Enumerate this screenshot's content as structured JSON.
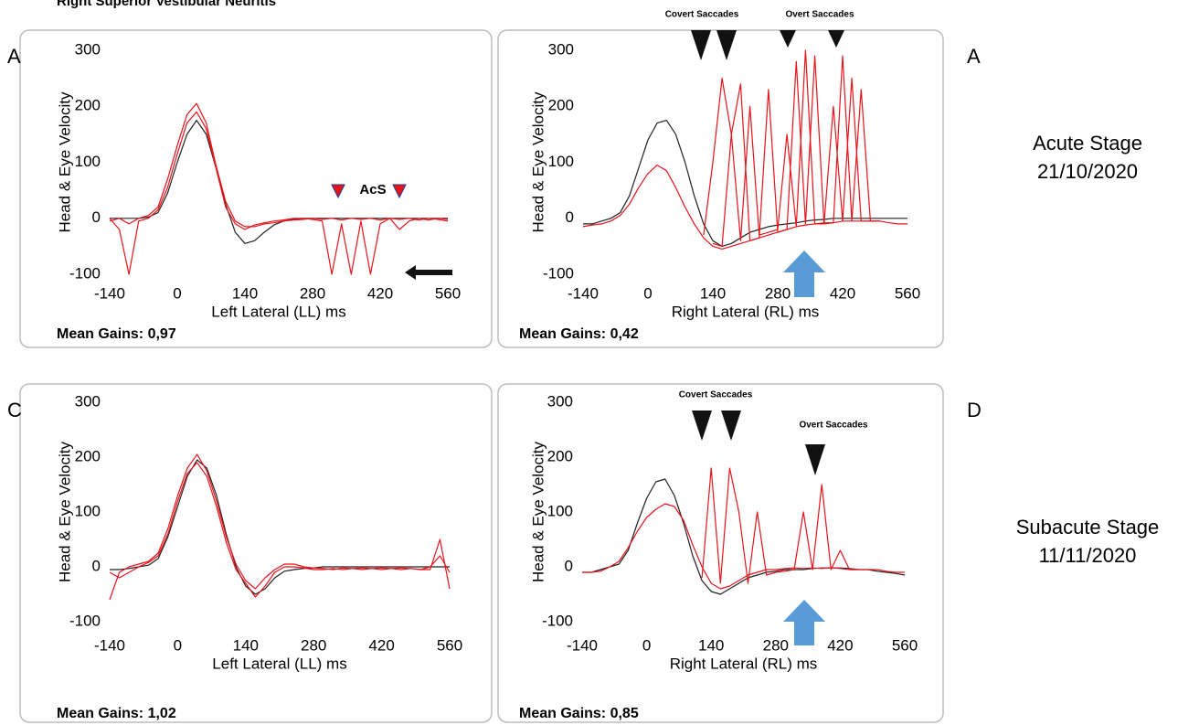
{
  "title": "Right Superior Vestibular Neuritis",
  "panel_labels": [
    "A",
    "A",
    "C",
    "D"
  ],
  "stages": [
    {
      "name": "Acute Stage",
      "date": "21/10/2020"
    },
    {
      "name": "Subacute Stage",
      "date": "11/11/2020"
    }
  ],
  "chart_data": [
    {
      "type": "line",
      "xlabel": "Left Lateral (LL) ms",
      "ylabel": "Head & Eye Velocity",
      "note": "Mean Gains: 0,97",
      "annotations": [
        "AcS"
      ],
      "xlim": [
        -140,
        560
      ],
      "ylim": [
        -100,
        300
      ],
      "xticks": [
        -140,
        0,
        140,
        280,
        420,
        560
      ],
      "yticks": [
        -100,
        0,
        100,
        200,
        300
      ],
      "x": [
        -140,
        -120,
        -100,
        -80,
        -60,
        -40,
        -20,
        0,
        20,
        40,
        60,
        80,
        100,
        120,
        140,
        160,
        180,
        200,
        220,
        240,
        260,
        280,
        300,
        320,
        340,
        360,
        380,
        400,
        420,
        440,
        460,
        480,
        500,
        520,
        540,
        560
      ],
      "series": [
        {
          "color": "#222222",
          "values": [
            0,
            0,
            0,
            0,
            2,
            10,
            45,
            100,
            150,
            175,
            150,
            90,
            25,
            -25,
            -45,
            -40,
            -25,
            -12,
            -5,
            -2,
            0,
            0,
            0,
            0,
            0,
            0,
            0,
            0,
            0,
            0,
            0,
            0,
            0,
            0,
            0,
            0
          ]
        },
        {
          "color": "#e8141c",
          "values": [
            -5,
            0,
            -10,
            0,
            5,
            20,
            70,
            130,
            185,
            205,
            170,
            95,
            30,
            -5,
            -15,
            -15,
            -10,
            -8,
            -5,
            -3,
            -2,
            0,
            -2,
            0,
            -3,
            0,
            -2,
            0,
            -3,
            0,
            -2,
            0,
            -3,
            0,
            -2,
            -5
          ]
        },
        {
          "color": "#e8141c",
          "values": [
            0,
            -20,
            -100,
            -5,
            0,
            15,
            55,
            115,
            170,
            190,
            160,
            90,
            20,
            -10,
            -20,
            -12,
            -8,
            -5,
            -3,
            0,
            0,
            -2,
            -5,
            -100,
            -10,
            -100,
            -5,
            -100,
            -10,
            0,
            -20,
            -5,
            0,
            -3,
            0,
            -2
          ]
        }
      ]
    },
    {
      "type": "line",
      "xlabel": "Right Lateral (RL) ms",
      "ylabel": "Head & Eye Velocity",
      "note": "Mean Gains: 0,42",
      "annotations": [
        "Covert Saccades",
        "Overt Saccades"
      ],
      "xlim": [
        -140,
        560
      ],
      "ylim": [
        -100,
        300
      ],
      "xticks": [
        -140,
        0,
        140,
        280,
        420,
        560
      ],
      "yticks": [
        -100,
        0,
        100,
        200,
        300
      ],
      "x": [
        -140,
        -120,
        -100,
        -80,
        -60,
        -40,
        -20,
        0,
        20,
        40,
        60,
        80,
        100,
        120,
        140,
        160,
        180,
        200,
        220,
        240,
        260,
        280,
        300,
        320,
        340,
        360,
        380,
        400,
        420,
        440,
        460,
        480,
        500,
        520,
        540,
        560
      ],
      "series": [
        {
          "color": "#222222",
          "values": [
            -10,
            -10,
            -5,
            0,
            10,
            40,
            90,
            140,
            170,
            175,
            150,
            100,
            40,
            -10,
            -40,
            -50,
            -45,
            -35,
            -25,
            -20,
            -15,
            -12,
            -10,
            -8,
            -5,
            -3,
            -2,
            0,
            0,
            0,
            0,
            0,
            0,
            0,
            0,
            0
          ]
        },
        {
          "color": "#e8141c",
          "values": [
            -15,
            -12,
            -10,
            -5,
            5,
            25,
            55,
            80,
            95,
            85,
            55,
            20,
            -10,
            -35,
            -50,
            -55,
            -50,
            -45,
            -40,
            -35,
            -30,
            -25,
            -20,
            -15,
            -12,
            -10,
            -8,
            -8,
            -5,
            -5,
            -5,
            -5,
            -5,
            -8,
            -10,
            -10
          ]
        },
        {
          "color": "#e8141c",
          "values": [
            null,
            null,
            null,
            null,
            null,
            null,
            null,
            null,
            null,
            null,
            null,
            null,
            null,
            -30,
            100,
            250,
            150,
            -40,
            200,
            -30,
            -25,
            -20,
            150,
            -15,
            300,
            -10,
            -10,
            200,
            -5,
            250,
            -5,
            -5,
            -5,
            null,
            null,
            null
          ]
        },
        {
          "color": "#e8141c",
          "values": [
            null,
            null,
            null,
            null,
            null,
            null,
            null,
            null,
            null,
            null,
            null,
            null,
            null,
            null,
            -45,
            -50,
            150,
            240,
            -40,
            -35,
            230,
            -25,
            -20,
            280,
            -10,
            290,
            -10,
            -8,
            290,
            -5,
            230,
            -5,
            -5,
            null,
            null,
            null
          ]
        }
      ]
    },
    {
      "type": "line",
      "xlabel": "Left Lateral (LL) ms",
      "ylabel": "Head & Eye Velocity",
      "note": "Mean Gains: 1,02",
      "annotations": [],
      "xlim": [
        -140,
        560
      ],
      "ylim": [
        -100,
        300
      ],
      "xticks": [
        -140,
        0,
        140,
        280,
        420,
        560
      ],
      "yticks": [
        -100,
        0,
        100,
        200,
        300
      ],
      "x": [
        -140,
        -120,
        -100,
        -80,
        -60,
        -40,
        -20,
        0,
        20,
        40,
        60,
        80,
        100,
        120,
        140,
        160,
        180,
        200,
        220,
        240,
        260,
        280,
        300,
        320,
        340,
        360,
        380,
        400,
        420,
        440,
        460,
        480,
        500,
        520,
        540,
        560
      ],
      "series": [
        {
          "color": "#222222",
          "values": [
            -5,
            -5,
            -3,
            0,
            3,
            15,
            55,
            110,
            165,
            195,
            180,
            130,
            60,
            0,
            -35,
            -50,
            -40,
            -20,
            -8,
            -5,
            -3,
            -2,
            0,
            0,
            0,
            0,
            0,
            0,
            0,
            0,
            0,
            0,
            0,
            0,
            0,
            0
          ]
        },
        {
          "color": "#e8141c",
          "values": [
            -60,
            -10,
            0,
            5,
            10,
            25,
            70,
            130,
            180,
            205,
            175,
            120,
            55,
            5,
            -25,
            -40,
            -20,
            -5,
            5,
            5,
            0,
            -2,
            -3,
            -5,
            -2,
            -3,
            -2,
            -3,
            -2,
            -3,
            -2,
            -3,
            -5,
            -5,
            50,
            -40
          ]
        },
        {
          "color": "#e8141c",
          "values": [
            -10,
            -20,
            -10,
            0,
            8,
            20,
            60,
            120,
            170,
            190,
            165,
            110,
            45,
            -5,
            -30,
            -55,
            -35,
            -10,
            0,
            0,
            -2,
            -5,
            -5,
            -3,
            -5,
            -3,
            -5,
            -3,
            -5,
            -3,
            -5,
            -3,
            -5,
            0,
            20,
            -10
          ]
        }
      ]
    },
    {
      "type": "line",
      "xlabel": "Right Lateral (RL) ms",
      "ylabel": "Head & Eye Velocity",
      "note": "Mean Gains: 0,85",
      "annotations": [
        "Covert Saccades",
        "Overt Saccades"
      ],
      "xlim": [
        -140,
        560
      ],
      "ylim": [
        -100,
        300
      ],
      "xticks": [
        -140,
        0,
        140,
        280,
        420,
        560
      ],
      "yticks": [
        -100,
        0,
        100,
        200,
        300
      ],
      "x": [
        -140,
        -120,
        -100,
        -80,
        -60,
        -40,
        -20,
        0,
        20,
        40,
        60,
        80,
        100,
        120,
        140,
        160,
        180,
        200,
        220,
        240,
        260,
        280,
        300,
        320,
        340,
        360,
        380,
        400,
        420,
        440,
        460,
        480,
        500,
        520,
        540,
        560
      ],
      "series": [
        {
          "color": "#222222",
          "values": [
            -10,
            -10,
            -5,
            0,
            5,
            30,
            80,
            125,
            155,
            160,
            130,
            80,
            20,
            -25,
            -45,
            -50,
            -40,
            -30,
            -20,
            -15,
            -10,
            -8,
            -5,
            -5,
            -5,
            -3,
            -2,
            -2,
            -2,
            -3,
            -5,
            -5,
            -8,
            -10,
            -12,
            -15
          ]
        },
        {
          "color": "#e8141c",
          "values": [
            -10,
            -10,
            -8,
            0,
            10,
            35,
            65,
            90,
            105,
            115,
            110,
            85,
            40,
            0,
            -30,
            -40,
            -35,
            -25,
            -15,
            -10,
            -5,
            -5,
            -3,
            -2,
            -3,
            -2,
            -3,
            -2,
            -3,
            -5,
            -5,
            -5,
            -5,
            -8,
            -10,
            -10
          ]
        },
        {
          "color": "#e8141c",
          "values": [
            null,
            null,
            null,
            null,
            null,
            null,
            null,
            null,
            null,
            null,
            null,
            null,
            null,
            -20,
            180,
            -30,
            180,
            100,
            -30,
            100,
            -15,
            -10,
            -8,
            -5,
            100,
            -5,
            150,
            -5,
            30,
            -5,
            -5,
            null,
            null,
            null,
            null,
            null
          ]
        }
      ]
    }
  ]
}
